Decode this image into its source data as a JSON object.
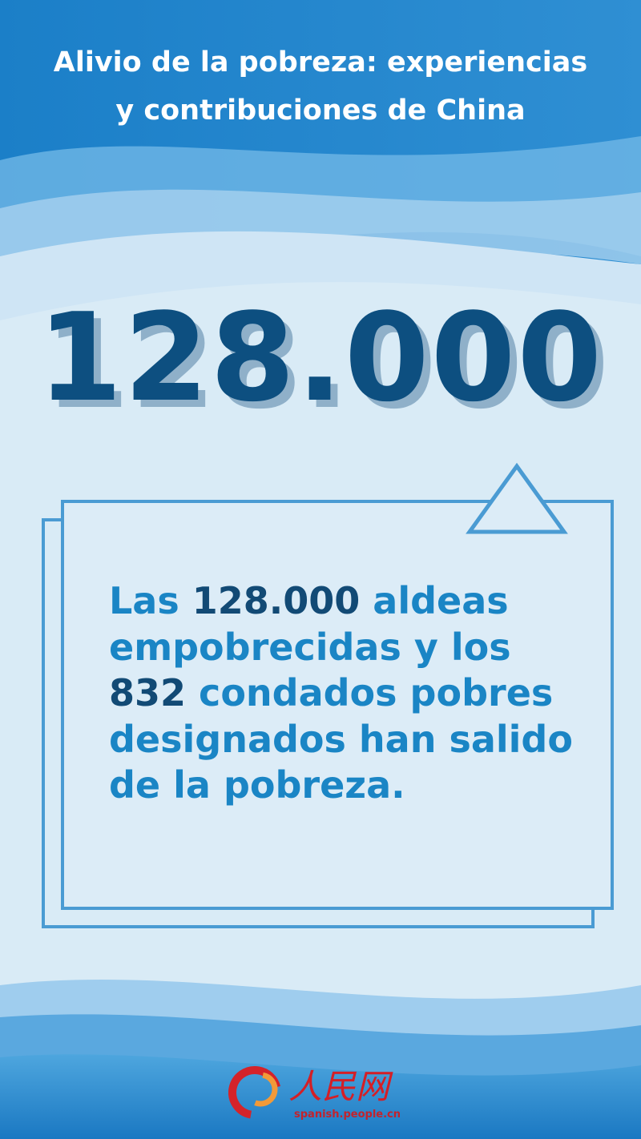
{
  "header": {
    "title_line1": "Alivio de la pobreza: experiencias",
    "title_line2": "y contribuciones de China"
  },
  "headline_number": "128.000",
  "body": {
    "parts": [
      "Las ",
      "128.000",
      " aldeas empobrecidas y los ",
      "832",
      " condados pobres designados han salido de la pobreza."
    ]
  },
  "logo": {
    "name": "人民网",
    "site": "spanish.people.cn"
  },
  "colors": {
    "number": "#0d4f80",
    "text": "#1a85c5",
    "highlight": "#124a75",
    "frame": "#4a9bd3",
    "background": "#d9ebf6"
  }
}
